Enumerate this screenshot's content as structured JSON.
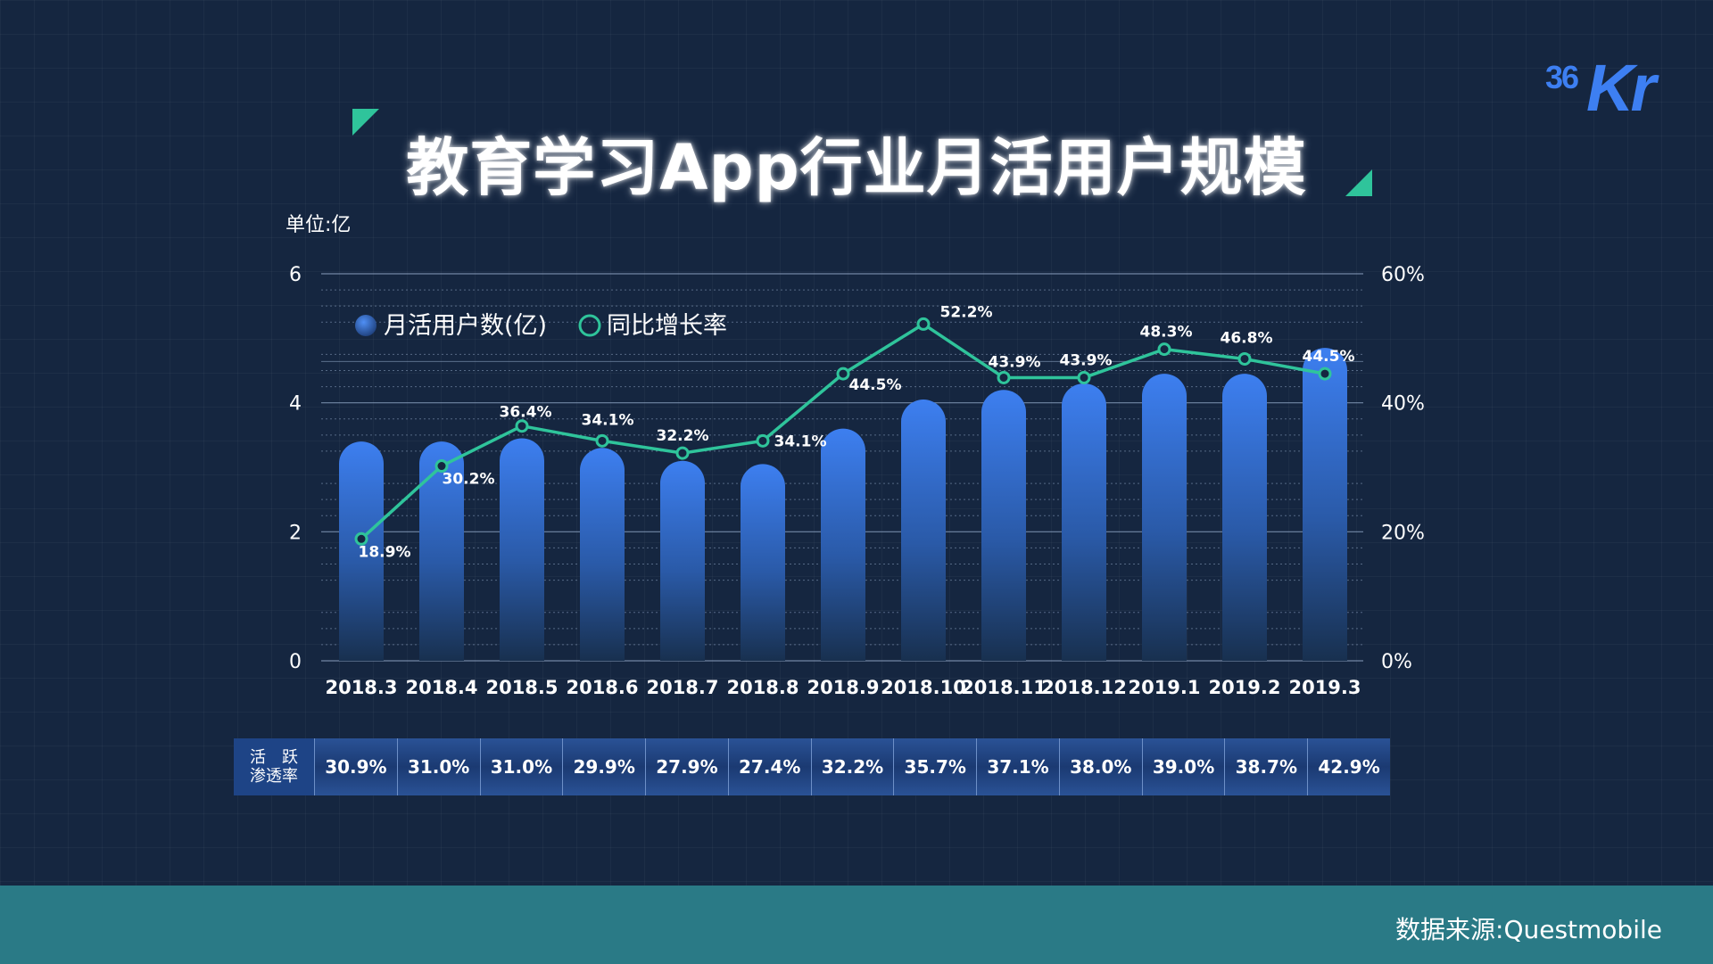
{
  "logo": {
    "num": "36",
    "big": "Kr"
  },
  "title": "教育学习App行业月活用户规模",
  "unit": "单位:亿",
  "legend": {
    "bars": "月活用户数(亿)",
    "line": "同比增长率"
  },
  "chart_data": {
    "type": "bar",
    "categories": [
      "2018.3",
      "2018.4",
      "2018.5",
      "2018.6",
      "2018.7",
      "2018.8",
      "2018.9",
      "2018.10",
      "2018.11",
      "2018.12",
      "2019.1",
      "2019.2",
      "2019.3"
    ],
    "series": [
      {
        "name": "月活用户数(亿)",
        "type": "bar",
        "axis": "left",
        "values": [
          3.4,
          3.4,
          3.45,
          3.3,
          3.1,
          3.05,
          3.6,
          4.05,
          4.2,
          4.3,
          4.45,
          4.45,
          4.85
        ]
      },
      {
        "name": "同比增长率",
        "type": "line",
        "axis": "right",
        "values": [
          18.9,
          30.2,
          36.4,
          34.1,
          32.2,
          34.1,
          44.5,
          52.2,
          43.9,
          43.9,
          48.3,
          46.8,
          44.5
        ],
        "labels": [
          "18.9%",
          "30.2%",
          "36.4%",
          "34.1%",
          "32.2%",
          "34.1%",
          "44.5%",
          "52.2%",
          "43.9%",
          "43.9%",
          "48.3%",
          "46.8%",
          "44.5%"
        ]
      }
    ],
    "y_left": {
      "ylim": [
        0,
        6
      ],
      "ticks": [
        "0",
        "2",
        "4",
        "6"
      ]
    },
    "y_right": {
      "ylim": [
        0,
        60
      ],
      "ticks": [
        "0%",
        "20%",
        "40%",
        "60%"
      ]
    },
    "grid": true,
    "legend_position": "top-left",
    "colors": {
      "bar_top": "#3d7ff0",
      "bar_bottom": "#1a3358",
      "line": "#2fc49b",
      "grid": "#8aa0bf"
    }
  },
  "table": {
    "header_line1": "活　跃",
    "header_line2": "渗透率",
    "values": [
      "30.9%",
      "31.0%",
      "31.0%",
      "29.9%",
      "27.9%",
      "27.4%",
      "32.2%",
      "35.7%",
      "37.1%",
      "38.0%",
      "39.0%",
      "38.7%",
      "42.9%"
    ]
  },
  "source": "数据来源:Questmobile"
}
